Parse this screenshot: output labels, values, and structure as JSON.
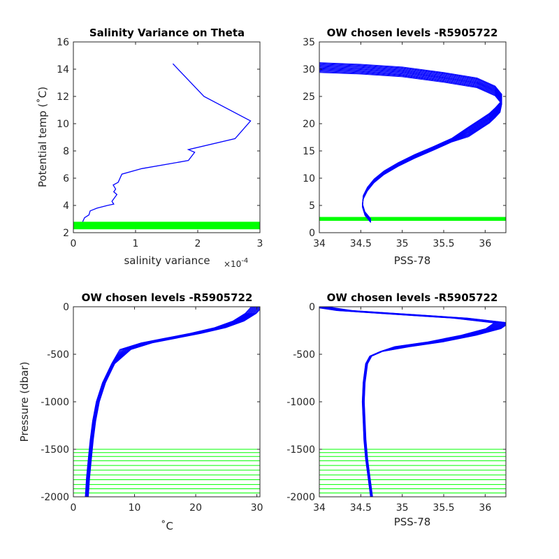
{
  "colors": {
    "profile": "#0000ff",
    "levels": "#00ff00",
    "axis": "#262626"
  },
  "chart_data": [
    {
      "type": "line",
      "title": "Salinity Variance on Theta",
      "xlabel": "salinity variance",
      "x_exponent_base": "×10",
      "x_exponent_power": "-4",
      "ylabel": "Potential temp (˚C)",
      "xlim": [
        0,
        3
      ],
      "ylim": [
        2,
        16
      ],
      "xticks": [
        0,
        1,
        2,
        3
      ],
      "yticks": [
        2,
        4,
        6,
        8,
        10,
        12,
        14,
        16
      ],
      "x_tick_labels": [
        "0",
        "1",
        "2",
        "3"
      ],
      "y_tick_labels": [
        "2",
        "4",
        "6",
        "8",
        "10",
        "12",
        "14",
        "16"
      ],
      "series": [
        {
          "x": [
            0.15,
            0.18,
            0.25,
            0.27,
            0.38,
            0.55,
            0.65,
            0.62,
            0.7,
            0.65,
            0.68,
            0.64,
            0.72,
            0.78,
            1.1,
            1.85,
            1.95,
            1.85,
            2.6,
            2.85,
            2.1,
            1.6
          ],
          "y": [
            2.8,
            3.1,
            3.3,
            3.6,
            3.8,
            4.0,
            4.1,
            4.3,
            4.8,
            5.0,
            5.2,
            5.5,
            5.7,
            6.3,
            6.7,
            7.3,
            7.9,
            8.1,
            8.9,
            10.2,
            12.0,
            14.4
          ]
        }
      ],
      "chosen_levels_theta": [
        2.3,
        2.35,
        2.4,
        2.45,
        2.5,
        2.55,
        2.6,
        2.65,
        2.7,
        2.75
      ]
    },
    {
      "type": "line",
      "title": "OW chosen levels -R5905722",
      "xlabel": "PSS-78",
      "ylabel": "",
      "xlim": [
        34,
        36.25
      ],
      "ylim": [
        0,
        35
      ],
      "xticks": [
        34,
        34.5,
        35,
        35.5,
        36
      ],
      "yticks": [
        0,
        5,
        10,
        15,
        20,
        25,
        30,
        35
      ],
      "x_tick_labels": [
        "34",
        "34.5",
        "35",
        "35.5",
        "36"
      ],
      "y_tick_labels": [
        "0",
        "5",
        "10",
        "15",
        "20",
        "25",
        "30",
        "35"
      ],
      "mean_profile": {
        "x": [
          34.62,
          34.55,
          34.52,
          34.53,
          34.58,
          34.66,
          34.78,
          34.95,
          35.15,
          35.38,
          35.6,
          35.8,
          35.95,
          36.05,
          36.12,
          36.18,
          36.2,
          36.12,
          35.9,
          35.5,
          35.0,
          34.5,
          34.0
        ],
        "y": [
          2.2,
          3.5,
          5.0,
          6.5,
          8.0,
          9.5,
          11.0,
          12.5,
          14.0,
          15.5,
          17.0,
          18.5,
          20.0,
          21.0,
          22.0,
          23.0,
          24.5,
          26.0,
          27.5,
          28.5,
          29.5,
          30.0,
          30.3
        ]
      },
      "chosen_levels_theta": [
        2.3,
        2.35,
        2.4,
        2.45,
        2.5,
        2.55,
        2.6,
        2.65,
        2.7,
        2.75
      ]
    },
    {
      "type": "line",
      "title": "OW chosen levels -R5905722",
      "xlabel": "˚C",
      "ylabel": "Pressure (dbar)",
      "xlim": [
        0,
        30.5
      ],
      "ylim": [
        -2000,
        0
      ],
      "xticks": [
        0,
        10,
        20,
        30
      ],
      "yticks": [
        -2000,
        -1500,
        -1000,
        -500,
        0
      ],
      "x_tick_labels": [
        "0",
        "10",
        "20",
        "30"
      ],
      "y_tick_labels": [
        "-2000",
        "-1500",
        "-1000",
        "-500",
        "0"
      ],
      "mean_profile": {
        "x": [
          2.2,
          2.4,
          2.7,
          3.0,
          3.4,
          4.0,
          5.0,
          6.5,
          8.5,
          12.0,
          16.0,
          20.0,
          24.0,
          27.0,
          29.0,
          30.0
        ],
        "y": [
          -2000,
          -1800,
          -1600,
          -1400,
          -1200,
          -1000,
          -800,
          -600,
          -450,
          -380,
          -330,
          -280,
          -220,
          -150,
          -70,
          0
        ]
      },
      "chosen_levels_pressure": [
        -1960,
        -1915,
        -1870,
        -1820,
        -1770,
        -1720,
        -1670,
        -1620,
        -1575,
        -1535,
        -1500
      ]
    },
    {
      "type": "line",
      "title": "OW chosen levels -R5905722",
      "xlabel": "PSS-78",
      "ylabel": "",
      "xlim": [
        34,
        36.25
      ],
      "ylim": [
        -2000,
        0
      ],
      "xticks": [
        34,
        34.5,
        35,
        35.5,
        36
      ],
      "yticks": [
        -2000,
        -1500,
        -1000,
        -500,
        0
      ],
      "x_tick_labels": [
        "34",
        "34.5",
        "35",
        "35.5",
        "36"
      ],
      "y_tick_labels": [
        "-2000",
        "-1500",
        "-1000",
        "-500",
        "0"
      ],
      "mean_profile": {
        "x": [
          34.63,
          34.6,
          34.57,
          34.55,
          34.54,
          34.53,
          34.54,
          34.57,
          34.62,
          34.75,
          35.0,
          35.4,
          35.8,
          36.1,
          36.2,
          35.7,
          35.0,
          34.3,
          34.0
        ],
        "y": [
          -2000,
          -1800,
          -1600,
          -1400,
          -1200,
          -1000,
          -800,
          -600,
          -520,
          -470,
          -420,
          -370,
          -300,
          -230,
          -170,
          -120,
          -80,
          -40,
          0
        ]
      },
      "chosen_levels_pressure": [
        -1960,
        -1915,
        -1870,
        -1820,
        -1770,
        -1720,
        -1670,
        -1620,
        -1575,
        -1535,
        -1500
      ]
    }
  ]
}
